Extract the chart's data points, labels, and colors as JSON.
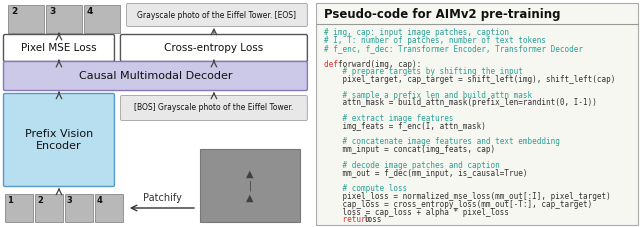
{
  "bg_color": "#ffffff",
  "code_panel_bg": "#f7f7f2",
  "code_panel_border": "#aaaaaa",
  "title": "Pseudo-code for AIMv2 pre-training",
  "title_fontsize": 8.5,
  "code_fontsize": 5.5,
  "comment_color": "#2aa198",
  "keyword_color": "#dc322f",
  "code_color": "#333333",
  "code_lines": [
    {
      "text": "# img, cap: input image patches, caption",
      "color": "#2aa198"
    },
    {
      "text": "# I, T: number of patches, number of text tokens",
      "color": "#2aa198"
    },
    {
      "text": "# f_enc, f_dec: Transformer Encoder, Transformer Decoder",
      "color": "#2aa198"
    },
    {
      "text": "",
      "color": "#333333"
    },
    {
      "text": "DEF_forward(img, cap):",
      "color": "#333333",
      "special": "def_line"
    },
    {
      "text": "    # prepare targets by shifting the input",
      "color": "#2aa198"
    },
    {
      "text": "    pixel_target, cap_target = shift_left(img), shift_left(cap)",
      "color": "#333333"
    },
    {
      "text": "",
      "color": "#333333"
    },
    {
      "text": "    # sample a prefix len and build attn mask",
      "color": "#2aa198"
    },
    {
      "text": "    attn_mask = build_attn_mask(prefix_len=randint(0, I-1))",
      "color": "#333333"
    },
    {
      "text": "",
      "color": "#333333"
    },
    {
      "text": "    # extract image features",
      "color": "#2aa198"
    },
    {
      "text": "    img_feats = f_enc(I, attn_mask)",
      "color": "#333333"
    },
    {
      "text": "",
      "color": "#333333"
    },
    {
      "text": "    # concatenate image features and text embedding",
      "color": "#2aa198"
    },
    {
      "text": "    mm_input = concat(img_feats, cap)",
      "color": "#333333"
    },
    {
      "text": "",
      "color": "#333333"
    },
    {
      "text": "    # decode image patches and caption",
      "color": "#2aa198"
    },
    {
      "text": "    mm_out = f_dec(mm_input, is_causal=True)",
      "color": "#333333"
    },
    {
      "text": "",
      "color": "#333333"
    },
    {
      "text": "    # compute loss",
      "color": "#2aa198"
    },
    {
      "text": "    pixel_loss = normalized_mse_loss(mm_out[:I], pixel_target)",
      "color": "#333333"
    },
    {
      "text": "    cap_loss = cross_entropy_loss(mm_out[-T:], cap_target)",
      "color": "#333333"
    },
    {
      "text": "    loss = cap_loss + alpha * pixel_loss",
      "color": "#333333"
    },
    {
      "text": "RETURN_loss",
      "color": "#333333",
      "special": "return_line"
    }
  ],
  "left_panel": {
    "patch_facecolor": "#b8b8b8",
    "patch_edgecolor": "#777777",
    "encoder_facecolor": "#b8dff0",
    "encoder_edgecolor": "#5599cc",
    "decoder_facecolor": "#ccc8e8",
    "decoder_edgecolor": "#8877bb",
    "box_facecolor": "#ffffff",
    "box_edgecolor": "#555555",
    "gray_box_facecolor": "#e8e8e8",
    "gray_box_edgecolor": "#aaaaaa",
    "eiffel_facecolor": "#909090"
  }
}
